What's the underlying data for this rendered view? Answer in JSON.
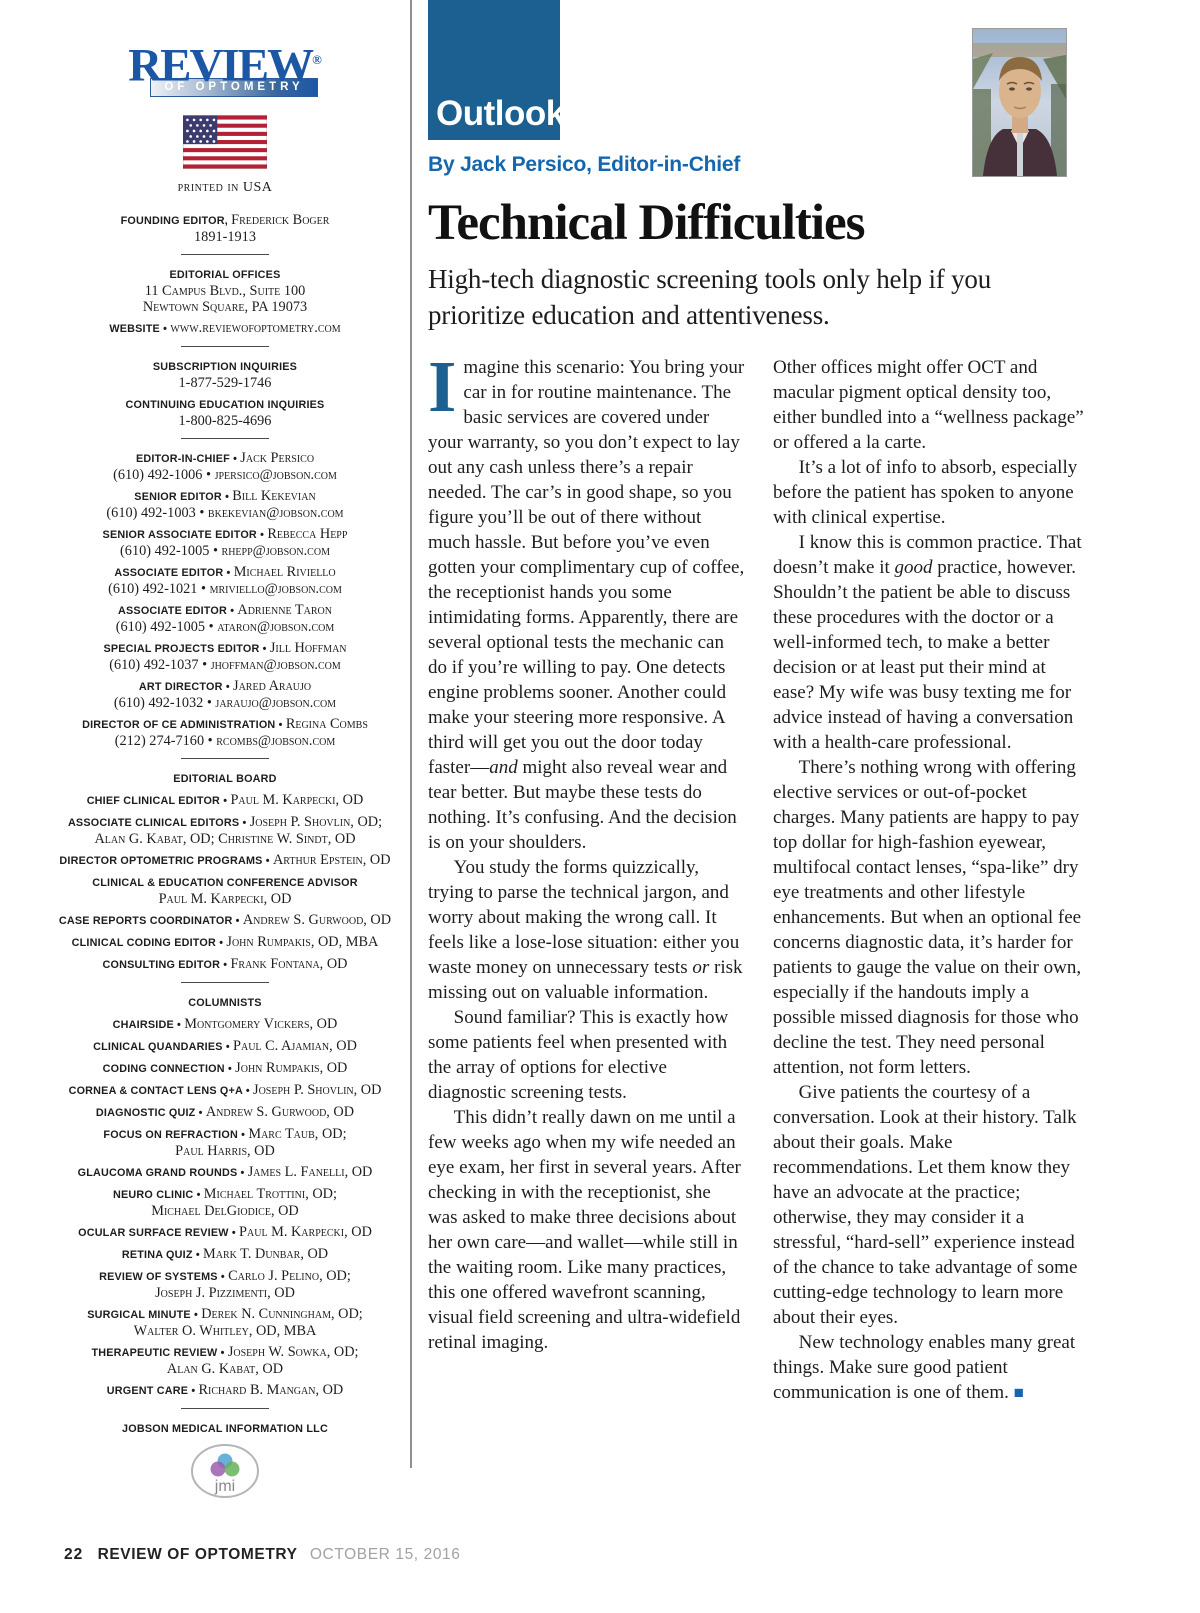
{
  "colors": {
    "brand_blue": "#1b6090",
    "logo_blue": "#1c57a5",
    "byline_blue": "#1566ad",
    "body_text": "#1e1e20",
    "footer_date_gray": "#a2a2a2"
  },
  "logo": {
    "title": "REVIEW",
    "reg": "®",
    "subtitle": "OF OPTOMETRY"
  },
  "masthead": {
    "printed_in": "printed in USA",
    "jmi_label": "jmi",
    "sections": [
      {
        "items": [
          [
            [
              [
                "l",
                "FOUNDING EDITOR, "
              ],
              [
                "n",
                "Frederick Boger"
              ]
            ],
            [
              [
                "t",
                "1891-1913"
              ]
            ]
          ]
        ]
      },
      {
        "items": [
          [
            [
              [
                "l",
                "EDITORIAL OFFICES"
              ]
            ],
            [
              [
                "n",
                "11 Campus Blvd., Suite 100"
              ]
            ],
            [
              [
                "n",
                "Newtown Square, PA 19073"
              ]
            ]
          ],
          [
            [
              [
                "l",
                "WEBSITE • "
              ],
              [
                "n",
                "www.reviewofoptometry.com"
              ]
            ]
          ]
        ]
      },
      {
        "items": [
          [
            [
              [
                "l",
                "SUBSCRIPTION INQUIRIES"
              ]
            ],
            [
              [
                "t",
                "1-877-529-1746"
              ]
            ]
          ],
          [
            [
              [
                "l",
                "CONTINUING EDUCATION INQUIRIES"
              ]
            ],
            [
              [
                "t",
                "1-800-825-4696"
              ]
            ]
          ]
        ]
      },
      {
        "items": [
          [
            [
              [
                "l",
                "EDITOR-IN-CHIEF • "
              ],
              [
                "n",
                "Jack Persico"
              ]
            ],
            [
              [
                "t",
                "(610) 492-1006 • "
              ],
              [
                "n",
                "jpersico@jobson.com"
              ]
            ]
          ],
          [
            [
              [
                "l",
                "SENIOR EDITOR • "
              ],
              [
                "n",
                "Bill Kekevian"
              ]
            ],
            [
              [
                "t",
                "(610) 492-1003 • "
              ],
              [
                "n",
                "bkekevian@jobson.com"
              ]
            ]
          ],
          [
            [
              [
                "l",
                "SENIOR ASSOCIATE EDITOR • "
              ],
              [
                "n",
                "Rebecca Hepp"
              ]
            ],
            [
              [
                "t",
                "(610) 492-1005 • "
              ],
              [
                "n",
                "rhepp@jobson.com"
              ]
            ]
          ],
          [
            [
              [
                "l",
                "ASSOCIATE EDITOR • "
              ],
              [
                "n",
                "Michael Riviello"
              ]
            ],
            [
              [
                "t",
                "(610) 492-1021 • "
              ],
              [
                "n",
                "mriviello@jobson.com"
              ]
            ]
          ],
          [
            [
              [
                "l",
                "ASSOCIATE EDITOR • "
              ],
              [
                "n",
                "Adrienne Taron"
              ]
            ],
            [
              [
                "t",
                "(610) 492-1005 • "
              ],
              [
                "n",
                "ataron@jobson.com"
              ]
            ]
          ],
          [
            [
              [
                "l",
                "SPECIAL PROJECTS EDITOR • "
              ],
              [
                "n",
                "Jill Hoffman"
              ]
            ],
            [
              [
                "t",
                "(610) 492-1037 • "
              ],
              [
                "n",
                "jhoffman@jobson.com"
              ]
            ]
          ],
          [
            [
              [
                "l",
                "ART DIRECTOR • "
              ],
              [
                "n",
                "Jared Araujo"
              ]
            ],
            [
              [
                "t",
                "(610) 492-1032 • "
              ],
              [
                "n",
                "jaraujo@jobson.com"
              ]
            ]
          ],
          [
            [
              [
                "l",
                "DIRECTOR OF CE ADMINISTRATION • "
              ],
              [
                "n",
                "Regina Combs"
              ]
            ],
            [
              [
                "t",
                "(212) 274-7160 • "
              ],
              [
                "n",
                "rcombs@jobson.com"
              ]
            ]
          ]
        ]
      },
      {
        "items": [
          [
            [
              [
                "l",
                "EDITORIAL BOARD"
              ]
            ]
          ],
          [
            [
              [
                "l",
                "CHIEF CLINICAL EDITOR • "
              ],
              [
                "n",
                "Paul M. Karpecki, OD"
              ]
            ]
          ],
          [
            [
              [
                "l",
                "ASSOCIATE CLINICAL EDITORS • "
              ],
              [
                "n",
                "Joseph P. Shovlin, OD;"
              ]
            ],
            [
              [
                "n",
                "Alan G. Kabat, OD; Christine W. Sindt, OD"
              ]
            ]
          ],
          [
            [
              [
                "l",
                "DIRECTOR OPTOMETRIC PROGRAMS • "
              ],
              [
                "n",
                "Arthur Epstein, OD"
              ]
            ]
          ],
          [
            [
              [
                "l",
                "CLINICAL & EDUCATION CONFERENCE ADVISOR"
              ]
            ],
            [
              [
                "n",
                "Paul M. Karpecki, OD"
              ]
            ]
          ],
          [
            [
              [
                "l",
                "CASE REPORTS COORDINATOR • "
              ],
              [
                "n",
                "Andrew S. Gurwood, OD"
              ]
            ]
          ],
          [
            [
              [
                "l",
                "CLINICAL CODING EDITOR • "
              ],
              [
                "n",
                "John Rumpakis, OD, MBA"
              ]
            ]
          ],
          [
            [
              [
                "l",
                "CONSULTING EDITOR • "
              ],
              [
                "n",
                "Frank Fontana, OD"
              ]
            ]
          ]
        ]
      },
      {
        "items": [
          [
            [
              [
                "l",
                "COLUMNISTS"
              ]
            ]
          ],
          [
            [
              [
                "l",
                "CHAIRSIDE • "
              ],
              [
                "n",
                "Montgomery Vickers, OD"
              ]
            ]
          ],
          [
            [
              [
                "l",
                "CLINICAL QUANDARIES • "
              ],
              [
                "n",
                "Paul C. Ajamian, OD"
              ]
            ]
          ],
          [
            [
              [
                "l",
                "CODING CONNECTION • "
              ],
              [
                "n",
                "John Rumpakis, OD"
              ]
            ]
          ],
          [
            [
              [
                "l",
                "CORNEA & CONTACT LENS Q+A • "
              ],
              [
                "n",
                "Joseph P. Shovlin, OD"
              ]
            ]
          ],
          [
            [
              [
                "l",
                "DIAGNOSTIC QUIZ • "
              ],
              [
                "n",
                "Andrew S. Gurwood, OD"
              ]
            ]
          ],
          [
            [
              [
                "l",
                "FOCUS ON REFRACTION • "
              ],
              [
                "n",
                "Marc Taub, OD;"
              ]
            ],
            [
              [
                "n",
                "Paul Harris, OD"
              ]
            ]
          ],
          [
            [
              [
                "l",
                "GLAUCOMA GRAND ROUNDS • "
              ],
              [
                "n",
                "James L. Fanelli, OD"
              ]
            ]
          ],
          [
            [
              [
                "l",
                "NEURO CLINIC • "
              ],
              [
                "n",
                "Michael Trottini, OD;"
              ]
            ],
            [
              [
                "n",
                "Michael DelGiodice, OD"
              ]
            ]
          ],
          [
            [
              [
                "l",
                "OCULAR SURFACE REVIEW • "
              ],
              [
                "n",
                "Paul M. Karpecki, OD"
              ]
            ]
          ],
          [
            [
              [
                "l",
                "RETINA QUIZ • "
              ],
              [
                "n",
                "Mark T. Dunbar, OD"
              ]
            ]
          ],
          [
            [
              [
                "l",
                "REVIEW OF SYSTEMS • "
              ],
              [
                "n",
                "Carlo J. Pelino, OD;"
              ]
            ],
            [
              [
                "n",
                "Joseph J. Pizzimenti, OD"
              ]
            ]
          ],
          [
            [
              [
                "l",
                "SURGICAL MINUTE • "
              ],
              [
                "n",
                "Derek N. Cunningham, OD;"
              ]
            ],
            [
              [
                "n",
                "Walter O. Whitley, OD, MBA"
              ]
            ]
          ],
          [
            [
              [
                "l",
                "THERAPEUTIC REVIEW • "
              ],
              [
                "n",
                "Joseph W. Sowka, OD;"
              ]
            ],
            [
              [
                "n",
                "Alan G. Kabat, OD"
              ]
            ]
          ],
          [
            [
              [
                "l",
                "URGENT CARE • "
              ],
              [
                "n",
                "Richard B. Mangan, OD"
              ]
            ]
          ]
        ]
      },
      {
        "items": [
          [
            [
              [
                "l",
                "JOBSON MEDICAL INFORMATION LLC"
              ]
            ]
          ]
        ]
      }
    ]
  },
  "header": {
    "section_label": "Outlook",
    "byline": "By Jack Persico, Editor-in-Chief"
  },
  "article": {
    "title": "Technical Difficulties",
    "subtitle": "High-tech diagnostic screening tools only help if you prioritize education and attentiveness.",
    "columns": {
      "left": [
        {
          "dropcap": "I",
          "seg": [
            {
              "t": "magine this scenario: You bring your car in for routine maintenance. The basic services are covered under your warranty, so you don’t expect to lay out any cash unless there’s a repair needed. The car’s in good shape, so you figure you’ll be out of there without much hassle. But before you’ve even gotten your complimentary cup of coffee, the receptionist hands you some intimidating forms. Apparently, there are several optional tests the mechanic can do if you’re willing to pay. One detects engine problems sooner. Another could make your steering more responsive. A third will get you out the door today faster—"
            },
            {
              "t": "and",
              "i": true
            },
            {
              "t": " might also reveal wear and tear better. But maybe these tests do nothing. It’s confusing. And the decision is on your shoulders."
            }
          ]
        },
        {
          "seg": [
            {
              "t": "You study the forms quizzically, trying to parse the technical jargon, and worry about making the wrong call. It feels like a lose-lose situation: either you waste money on unnecessary tests "
            },
            {
              "t": "or",
              "i": true
            },
            {
              "t": " risk missing out on valuable information."
            }
          ]
        },
        {
          "seg": [
            {
              "t": "Sound familiar? This is exactly how some patients feel when presented with the array of options for elective diagnostic screening tests."
            }
          ]
        },
        {
          "seg": [
            {
              "t": "This didn’t really dawn on me until a few weeks ago when my wife needed an eye exam, her first in several years. After checking in with the receptionist, she was asked to make three decisions about her own care—and wallet—while still in the waiting room. Like many practices, this one offered wavefront scanning, visual field screening and ultra-widefield retinal imaging."
            }
          ]
        }
      ],
      "right": [
        {
          "seg": [
            {
              "t": "Other offices might offer OCT and macular pigment optical density too, either bundled into a “wellness package” or offered a la carte."
            }
          ]
        },
        {
          "seg": [
            {
              "t": "It’s a lot of info to absorb, especially before the patient has spoken to anyone with clinical expertise."
            }
          ]
        },
        {
          "seg": [
            {
              "t": "I know this is common practice. That doesn’t make it "
            },
            {
              "t": "good",
              "i": true
            },
            {
              "t": " practice, however. Shouldn’t the patient be able to discuss these procedures with the doctor or a well-informed tech, to make a better decision or at least put their mind at ease? My wife was busy texting me for advice instead of having a conversation with a health-care professional."
            }
          ]
        },
        {
          "seg": [
            {
              "t": "There’s nothing wrong with offering elective services or out-of-pocket charges. Many patients are happy to pay top dollar for high-fashion eyewear, multifocal contact lenses, “spa-like” dry eye treatments and other lifestyle enhancements. But when an optional fee concerns diagnostic data, it’s harder for patients to gauge the value on their own, especially if the handouts imply a possible missed diagnosis for those who decline the test. They need personal attention, not form letters."
            }
          ]
        },
        {
          "seg": [
            {
              "t": "Give patients the courtesy of a conversation. Look at their history. Talk about their goals. Make recommendations. Let them know they have an advocate at the practice; otherwise, they may consider it a stressful, “hard-sell” experience instead of the chance to take advantage of some cutting-edge technology to learn more about their eyes."
            }
          ]
        },
        {
          "seg": [
            {
              "t": "New technology enables many great things. Make sure good patient communication is one of them. "
            },
            {
              "t": "■",
              "m": true
            }
          ]
        }
      ]
    }
  },
  "footer": {
    "page_number": "22",
    "magazine": "REVIEW OF OPTOMETRY",
    "date": "OCTOBER 15, 2016"
  }
}
